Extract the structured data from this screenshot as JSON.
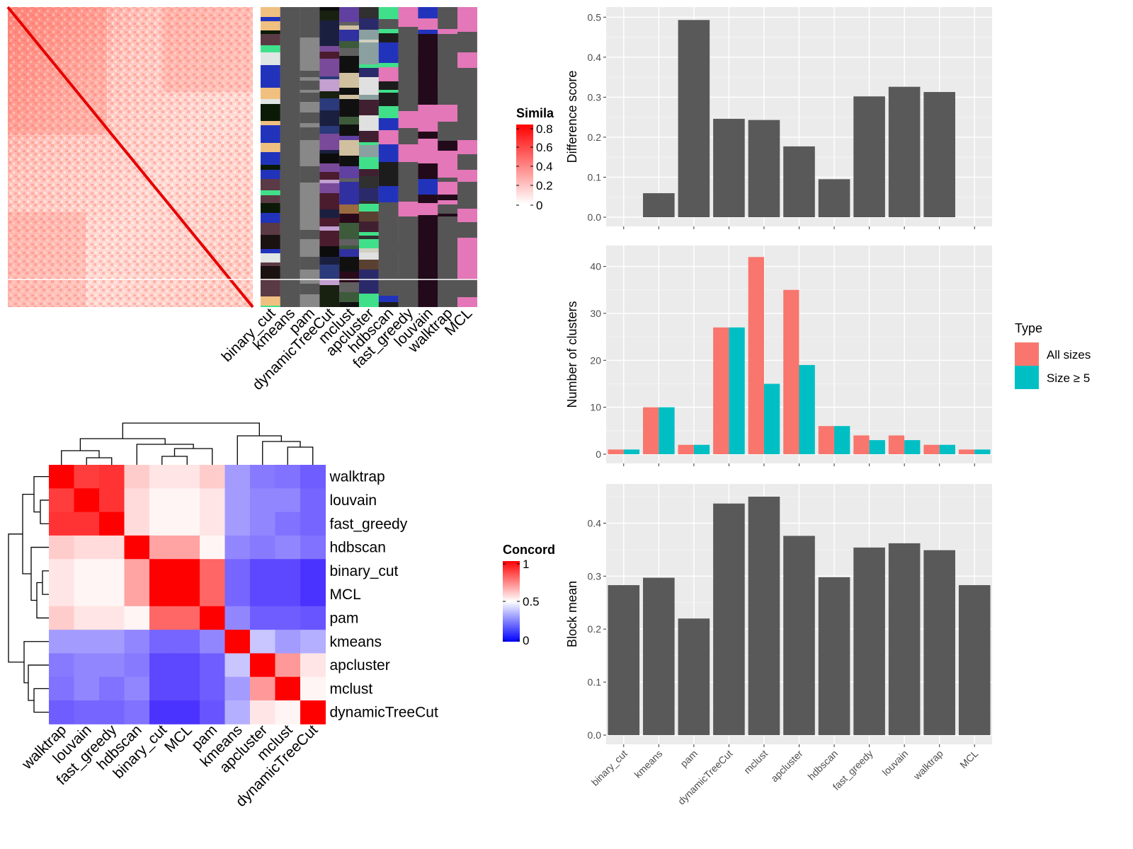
{
  "colors": {
    "panel_bg": "#EBEBEB",
    "bar": "#595959",
    "all_sizes": "#F8766D",
    "size_ge_5": "#00BFC4",
    "heat_high": "#FF0000",
    "heat_mid": "#FFFFFF",
    "heat_low": "#0000FF",
    "anno_bg": "#E377B8"
  },
  "similarity_legend": {
    "title": "Simila",
    "ticks": [
      "0.8",
      "0.6",
      "0.4",
      "0.2",
      "0"
    ]
  },
  "concordance_legend": {
    "title": "Concord",
    "ticks": [
      "1",
      "0.5",
      "0"
    ]
  },
  "annotation_columns": [
    "binary_cut",
    "kmeans",
    "pam",
    "dynamicTreeCut",
    "mclust",
    "apcluster",
    "hdbscan",
    "fast_greedy",
    "louvain",
    "walktrap",
    "MCL"
  ],
  "chart_data": [
    {
      "type": "bar",
      "categories": [
        "binary_cut",
        "kmeans",
        "pam",
        "dynamicTreeCut",
        "mclust",
        "apcluster",
        "hdbscan",
        "fast_greedy",
        "louvain",
        "walktrap",
        "MCL"
      ],
      "values": [
        0.0,
        0.06,
        0.493,
        0.246,
        0.243,
        0.177,
        0.095,
        0.302,
        0.326,
        0.313,
        0.0
      ],
      "ylabel": "Difference score",
      "ylim": [
        0,
        0.52
      ],
      "yticks": [
        "0.0",
        "0.1",
        "0.2",
        "0.3",
        "0.4",
        "0.5"
      ],
      "grid": true
    },
    {
      "type": "bar",
      "categories": [
        "binary_cut",
        "kmeans",
        "pam",
        "dynamicTreeCut",
        "mclust",
        "apcluster",
        "hdbscan",
        "fast_greedy",
        "louvain",
        "walktrap",
        "MCL"
      ],
      "series": [
        {
          "name": "All sizes",
          "values": [
            1,
            10,
            2,
            27,
            42,
            35,
            6,
            4,
            4,
            2,
            1
          ]
        },
        {
          "name": "Size ≥ 5",
          "values": [
            1,
            10,
            2,
            27,
            15,
            19,
            6,
            3,
            3,
            2,
            1
          ]
        }
      ],
      "ylabel": "Number of clusters",
      "ylim": [
        0,
        44
      ],
      "yticks": [
        "0",
        "10",
        "20",
        "30",
        "40"
      ],
      "legend": {
        "title": "Type",
        "position": "right"
      },
      "grid": true
    },
    {
      "type": "bar",
      "categories": [
        "binary_cut",
        "kmeans",
        "pam",
        "dynamicTreeCut",
        "mclust",
        "apcluster",
        "hdbscan",
        "fast_greedy",
        "louvain",
        "walktrap",
        "MCL"
      ],
      "values": [
        0.283,
        0.297,
        0.22,
        0.437,
        0.45,
        0.376,
        0.298,
        0.354,
        0.362,
        0.349,
        0.283
      ],
      "ylabel": "Block mean",
      "ylim": [
        0,
        0.47
      ],
      "yticks": [
        "0.0",
        "0.1",
        "0.2",
        "0.3",
        "0.4"
      ],
      "grid": true
    },
    {
      "type": "heatmap",
      "rows": [
        "walktrap",
        "louvain",
        "fast_greedy",
        "hdbscan",
        "binary_cut",
        "MCL",
        "pam",
        "kmeans",
        "apcluster",
        "mclust",
        "dynamicTreeCut"
      ],
      "columns": [
        "walktrap",
        "louvain",
        "fast_greedy",
        "hdbscan",
        "binary_cut",
        "MCL",
        "pam",
        "kmeans",
        "apcluster",
        "mclust",
        "dynamicTreeCut"
      ],
      "values": [
        [
          1.0,
          0.88,
          0.9,
          0.6,
          0.55,
          0.55,
          0.6,
          0.35,
          0.27,
          0.25,
          0.2
        ],
        [
          0.88,
          1.0,
          0.9,
          0.57,
          0.52,
          0.52,
          0.55,
          0.35,
          0.3,
          0.3,
          0.22
        ],
        [
          0.9,
          0.9,
          1.0,
          0.57,
          0.52,
          0.52,
          0.55,
          0.35,
          0.3,
          0.25,
          0.22
        ],
        [
          0.6,
          0.57,
          0.57,
          1.0,
          0.68,
          0.68,
          0.52,
          0.3,
          0.27,
          0.3,
          0.25
        ],
        [
          0.55,
          0.52,
          0.52,
          0.68,
          1.0,
          1.0,
          0.8,
          0.22,
          0.15,
          0.15,
          0.1
        ],
        [
          0.55,
          0.52,
          0.52,
          0.68,
          1.0,
          1.0,
          0.8,
          0.22,
          0.15,
          0.15,
          0.1
        ],
        [
          0.6,
          0.55,
          0.55,
          0.52,
          0.8,
          0.8,
          1.0,
          0.3,
          0.2,
          0.2,
          0.18
        ],
        [
          0.35,
          0.35,
          0.35,
          0.3,
          0.22,
          0.22,
          0.3,
          1.0,
          0.45,
          0.35,
          0.4
        ],
        [
          0.27,
          0.3,
          0.3,
          0.27,
          0.15,
          0.15,
          0.2,
          0.45,
          1.0,
          0.7,
          0.55
        ],
        [
          0.25,
          0.3,
          0.25,
          0.3,
          0.15,
          0.15,
          0.2,
          0.35,
          0.7,
          1.0,
          0.52
        ],
        [
          0.2,
          0.22,
          0.22,
          0.25,
          0.1,
          0.1,
          0.18,
          0.4,
          0.55,
          0.52,
          1.0
        ]
      ]
    }
  ]
}
